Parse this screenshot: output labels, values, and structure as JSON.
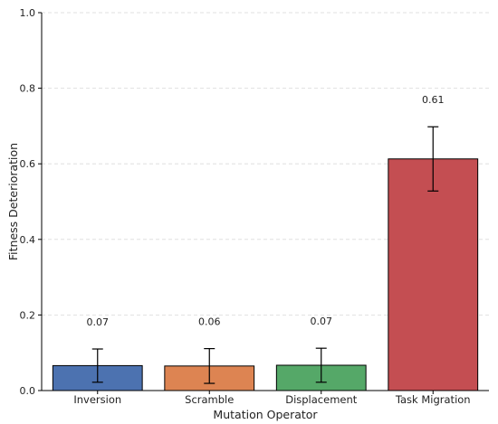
{
  "chart_data": {
    "type": "bar",
    "title": "",
    "xlabel": "Mutation Operator",
    "ylabel": "Fitness Deterioration",
    "categories": [
      "Inversion",
      "Scramble",
      "Displacement",
      "Task Migration"
    ],
    "values": [
      0.066,
      0.065,
      0.067,
      0.613
    ],
    "value_labels": [
      "0.07",
      "0.06",
      "0.07",
      "0.61"
    ],
    "error": [
      0.044,
      0.046,
      0.045,
      0.085
    ],
    "colors": [
      "#4c72b0",
      "#dd8452",
      "#55a868",
      "#c44e52"
    ],
    "ylim": [
      0,
      1.0
    ],
    "yticks": [
      0,
      0.2,
      0.4,
      0.6,
      0.8,
      1.0
    ],
    "ytick_labels": [
      "0.0",
      "0.2",
      "0.4",
      "0.6",
      "0.8",
      "1.0"
    ],
    "grid": "horizontal-dashed",
    "legend": "none"
  }
}
